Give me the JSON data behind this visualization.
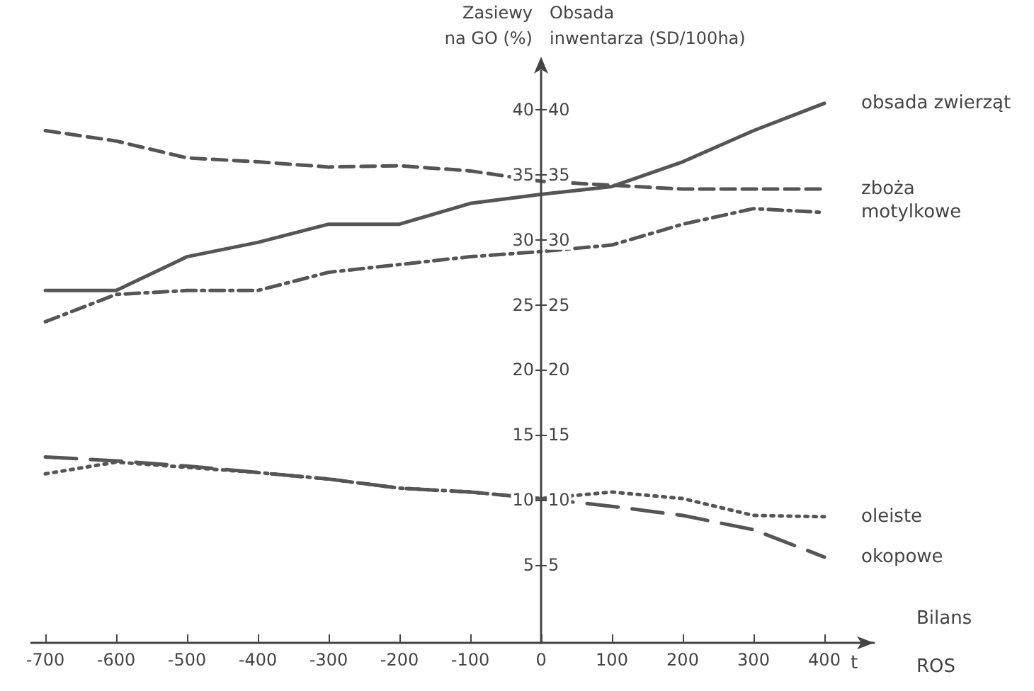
{
  "chart_data": {
    "type": "line",
    "ylabel": "Zasiewy\nna GO (%)",
    "y2label": "Obsada\ninwentarza (SD/100ha)",
    "xlabel": "Bilans\nROS",
    "annotations": [
      "t"
    ],
    "x": [
      -700,
      -600,
      -500,
      -400,
      -300,
      -200,
      -100,
      0,
      100,
      200,
      300,
      400
    ],
    "xlim": [
      -720,
      470
    ],
    "xticks": [
      -700,
      -600,
      -500,
      -400,
      -300,
      -200,
      -100,
      0,
      100,
      200,
      300,
      400
    ],
    "ylim": [
      -1,
      43
    ],
    "yticks": [
      5,
      10,
      15,
      20,
      25,
      30,
      35,
      40
    ],
    "y2lim": [
      -1,
      43
    ],
    "y2ticks": [
      5,
      10,
      15,
      20,
      25,
      30,
      35,
      40
    ],
    "grid": false,
    "legend": false,
    "marker": "none",
    "series": [
      {
        "name": "obsada zwierząt",
        "color": "#555555",
        "line_style": "solid",
        "values": [
          26.1,
          26.1,
          28.7,
          29.8,
          31.2,
          31.2,
          32.8,
          33.5,
          34.1,
          36,
          38.4,
          40.5
        ]
      },
      {
        "name": "zboża",
        "color": "#555555",
        "line_style": "dashed",
        "values": [
          38.4,
          37.6,
          36.3,
          36,
          35.6,
          35.7,
          35.3,
          34.5,
          34.2,
          33.9,
          33.9,
          33.9
        ]
      },
      {
        "name": "motylkowe",
        "color": "#555555",
        "line_style": "dashdot",
        "values": [
          23.7,
          25.8,
          26.1,
          26.1,
          27.5,
          28.1,
          28.7,
          29.1,
          29.6,
          31.2,
          32.4,
          32.1
        ]
      },
      {
        "name": "oleiste",
        "color": "#555555",
        "line_style": "dotted",
        "values": [
          12,
          12.9,
          12.5,
          12.1,
          11.6,
          10.9,
          10.6,
          10.1,
          10.6,
          10.1,
          8.8,
          8.7
        ]
      },
      {
        "name": "okopowe",
        "color": "#555555",
        "line_style": "longdash",
        "values": [
          13.3,
          13,
          12.6,
          12.1,
          11.6,
          10.9,
          10.6,
          10.1,
          9.5,
          8.8,
          7.7,
          5.6
        ]
      }
    ]
  }
}
